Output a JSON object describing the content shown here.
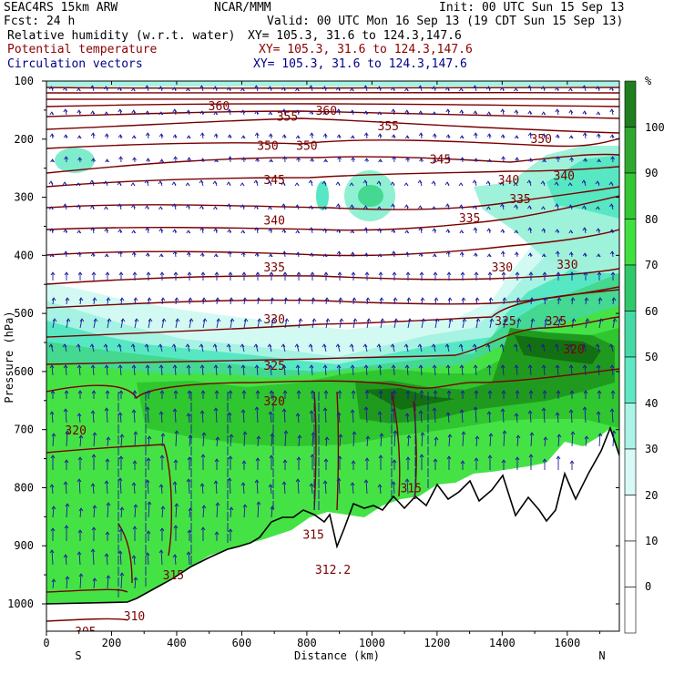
{
  "header": {
    "model": "SEAC4RS 15km ARW",
    "center": "NCAR/MMM",
    "init": "Init: 00 UTC Sun 15 Sep 13",
    "fcst": "Fcst:   24 h",
    "valid": "Valid: 00 UTC Mon 16 Sep 13 (19 CDT Sun 15 Sep 13)"
  },
  "fields": [
    {
      "name": "Relative humidity (w.r.t. water)",
      "xy": "XY= 105.3, 31.6 to 124.3,147.6",
      "color": "#000000"
    },
    {
      "name": "Potential temperature",
      "xy": "XY= 105.3, 31.6 to 124.3,147.6",
      "color": "#8b0000"
    },
    {
      "name": "Circulation vectors",
      "xy": "XY= 105.3, 31.6 to 124.3,147.6",
      "color": "#00008b"
    }
  ],
  "colorbar": {
    "unit": "%",
    "labels": [
      "100",
      "90",
      "80",
      "70",
      "60",
      "50",
      "40",
      "30",
      "20",
      "10",
      "0"
    ],
    "colors": [
      "#1a7a1a",
      "#2fa82f",
      "#33cc33",
      "#3ee63e",
      "#22c25a",
      "#40d89a",
      "#50e8c0",
      "#a8f5e6",
      "#d8faf6",
      "#ffffff",
      "#ffffff"
    ]
  },
  "chart_data": {
    "type": "cross-section",
    "xlabel": "Distance (km)",
    "ylabel": "Pressure (hPa)",
    "xlim": [
      0,
      1760
    ],
    "ylim": [
      1000,
      100
    ],
    "x_ticks": [
      "0",
      "200",
      "400",
      "600",
      "800",
      "1000",
      "1200",
      "1400",
      "1600"
    ],
    "y_ticks": [
      "100",
      "200",
      "300",
      "400",
      "500",
      "600",
      "700",
      "800",
      "900",
      "1000"
    ],
    "x_end_labels": {
      "left": "S",
      "right": "N"
    },
    "theta_labels": [
      {
        "value": "360",
        "x": 530,
        "p": 150
      },
      {
        "value": "355",
        "x": 740,
        "p": 168
      },
      {
        "value": "360",
        "x": 860,
        "p": 158
      },
      {
        "value": "355",
        "x": 1050,
        "p": 185
      },
      {
        "value": "350",
        "x": 680,
        "p": 218
      },
      {
        "value": "350",
        "x": 800,
        "p": 218
      },
      {
        "value": "350",
        "x": 1520,
        "p": 207
      },
      {
        "value": "345",
        "x": 1210,
        "p": 242
      },
      {
        "value": "345",
        "x": 700,
        "p": 277
      },
      {
        "value": "340",
        "x": 1420,
        "p": 277
      },
      {
        "value": "340",
        "x": 1590,
        "p": 270
      },
      {
        "value": "335",
        "x": 1455,
        "p": 310
      },
      {
        "value": "335",
        "x": 1300,
        "p": 343
      },
      {
        "value": "340",
        "x": 700,
        "p": 347
      },
      {
        "value": "335",
        "x": 700,
        "p": 428
      },
      {
        "value": "330",
        "x": 1400,
        "p": 428
      },
      {
        "value": "330",
        "x": 1600,
        "p": 423
      },
      {
        "value": "330",
        "x": 700,
        "p": 517
      },
      {
        "value": "325",
        "x": 1410,
        "p": 520
      },
      {
        "value": "325",
        "x": 1565,
        "p": 520
      },
      {
        "value": "325",
        "x": 700,
        "p": 597
      },
      {
        "value": "320",
        "x": 1620,
        "p": 569
      },
      {
        "value": "320",
        "x": 700,
        "p": 658
      },
      {
        "value": "320",
        "x": 90,
        "p": 708
      },
      {
        "value": "315",
        "x": 1120,
        "p": 808
      },
      {
        "value": "315",
        "x": 820,
        "p": 888
      },
      {
        "value": "315",
        "x": 390,
        "p": 958
      },
      {
        "value": "312.2",
        "x": 880,
        "p": 948
      },
      {
        "value": "310",
        "x": 270,
        "p": 1028
      },
      {
        "value": "305",
        "x": 120,
        "p": 1055
      }
    ]
  }
}
